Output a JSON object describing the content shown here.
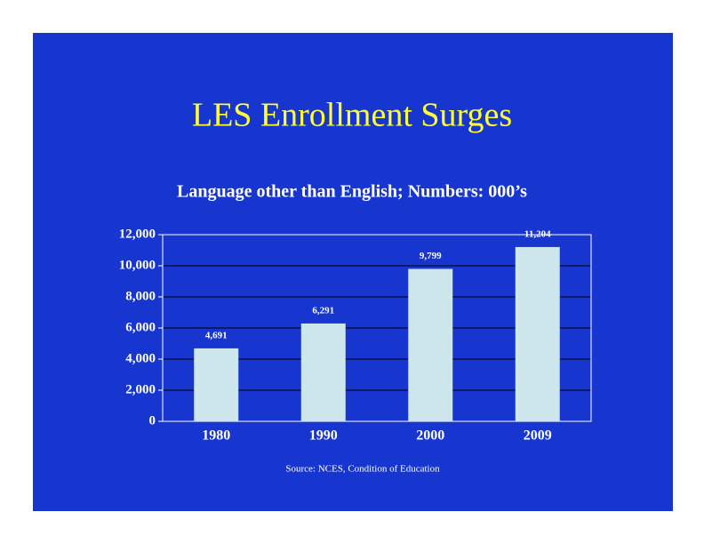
{
  "chart_data": {
    "type": "bar",
    "title": "LES Enrollment Surges",
    "subtitle": "Language other than English; Numbers: 000’s",
    "source": "Source: NCES, Condition of Education",
    "categories": [
      "1980",
      "1990",
      "2000",
      "2009"
    ],
    "values": [
      4691,
      6291,
      9799,
      11204
    ],
    "value_labels": [
      "4,691",
      "6,291",
      "9,799",
      "11,204"
    ],
    "color": "#cde6ec",
    "background": "#1736d0",
    "grid": true,
    "ylim": [
      0,
      12000
    ],
    "yticks": [
      0,
      {
        "value": 2000,
        "label": "2,000"
      },
      {
        "value": 4000,
        "label": "4,000"
      },
      {
        "value": 6000,
        "label": "6,000"
      },
      {
        "value": 8000,
        "label": "8,000"
      },
      {
        "value": 10000,
        "label": "10,000"
      },
      {
        "value": 12000,
        "label": "12,000"
      }
    ]
  }
}
